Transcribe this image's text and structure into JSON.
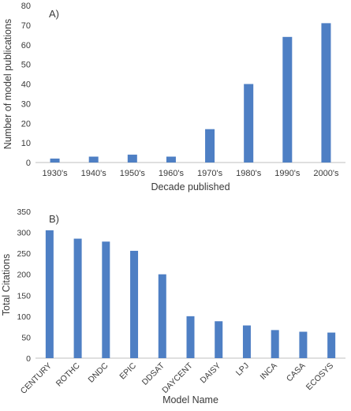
{
  "chart_data": [
    {
      "type": "bar",
      "panel_label": "A)",
      "xlabel": "Decade published",
      "ylabel": "Number of model publications",
      "ylim": [
        0,
        80
      ],
      "yticks": [
        "0",
        "10",
        "20",
        "30",
        "40",
        "50",
        "60",
        "70",
        "80"
      ],
      "categories": [
        "1930's",
        "1940's",
        "1950's",
        "1960's",
        "1970's",
        "1980's",
        "1990's",
        "2000's"
      ],
      "values": [
        2,
        3,
        4,
        3,
        17,
        40,
        64,
        71
      ],
      "bar_color": "#4e7fc4",
      "grid": false,
      "tick_rotation": 0
    },
    {
      "type": "bar",
      "panel_label": "B)",
      "xlabel": "Model Name",
      "ylabel": "Total Citations",
      "ylim": [
        0,
        350
      ],
      "yticks": [
        "0",
        "50",
        "100",
        "150",
        "200",
        "250",
        "300",
        "350"
      ],
      "categories": [
        "CENTURY",
        "ROTHC",
        "DNDC",
        "EPIC",
        "DDSAT",
        "DAYCENT",
        "DAISY",
        "LPJ",
        "INCA",
        "CASA",
        "ECOSYS"
      ],
      "values": [
        305,
        285,
        278,
        256,
        200,
        100,
        88,
        78,
        67,
        63,
        61
      ],
      "bar_color": "#4e7fc4",
      "grid": false,
      "tick_rotation": -45
    }
  ]
}
